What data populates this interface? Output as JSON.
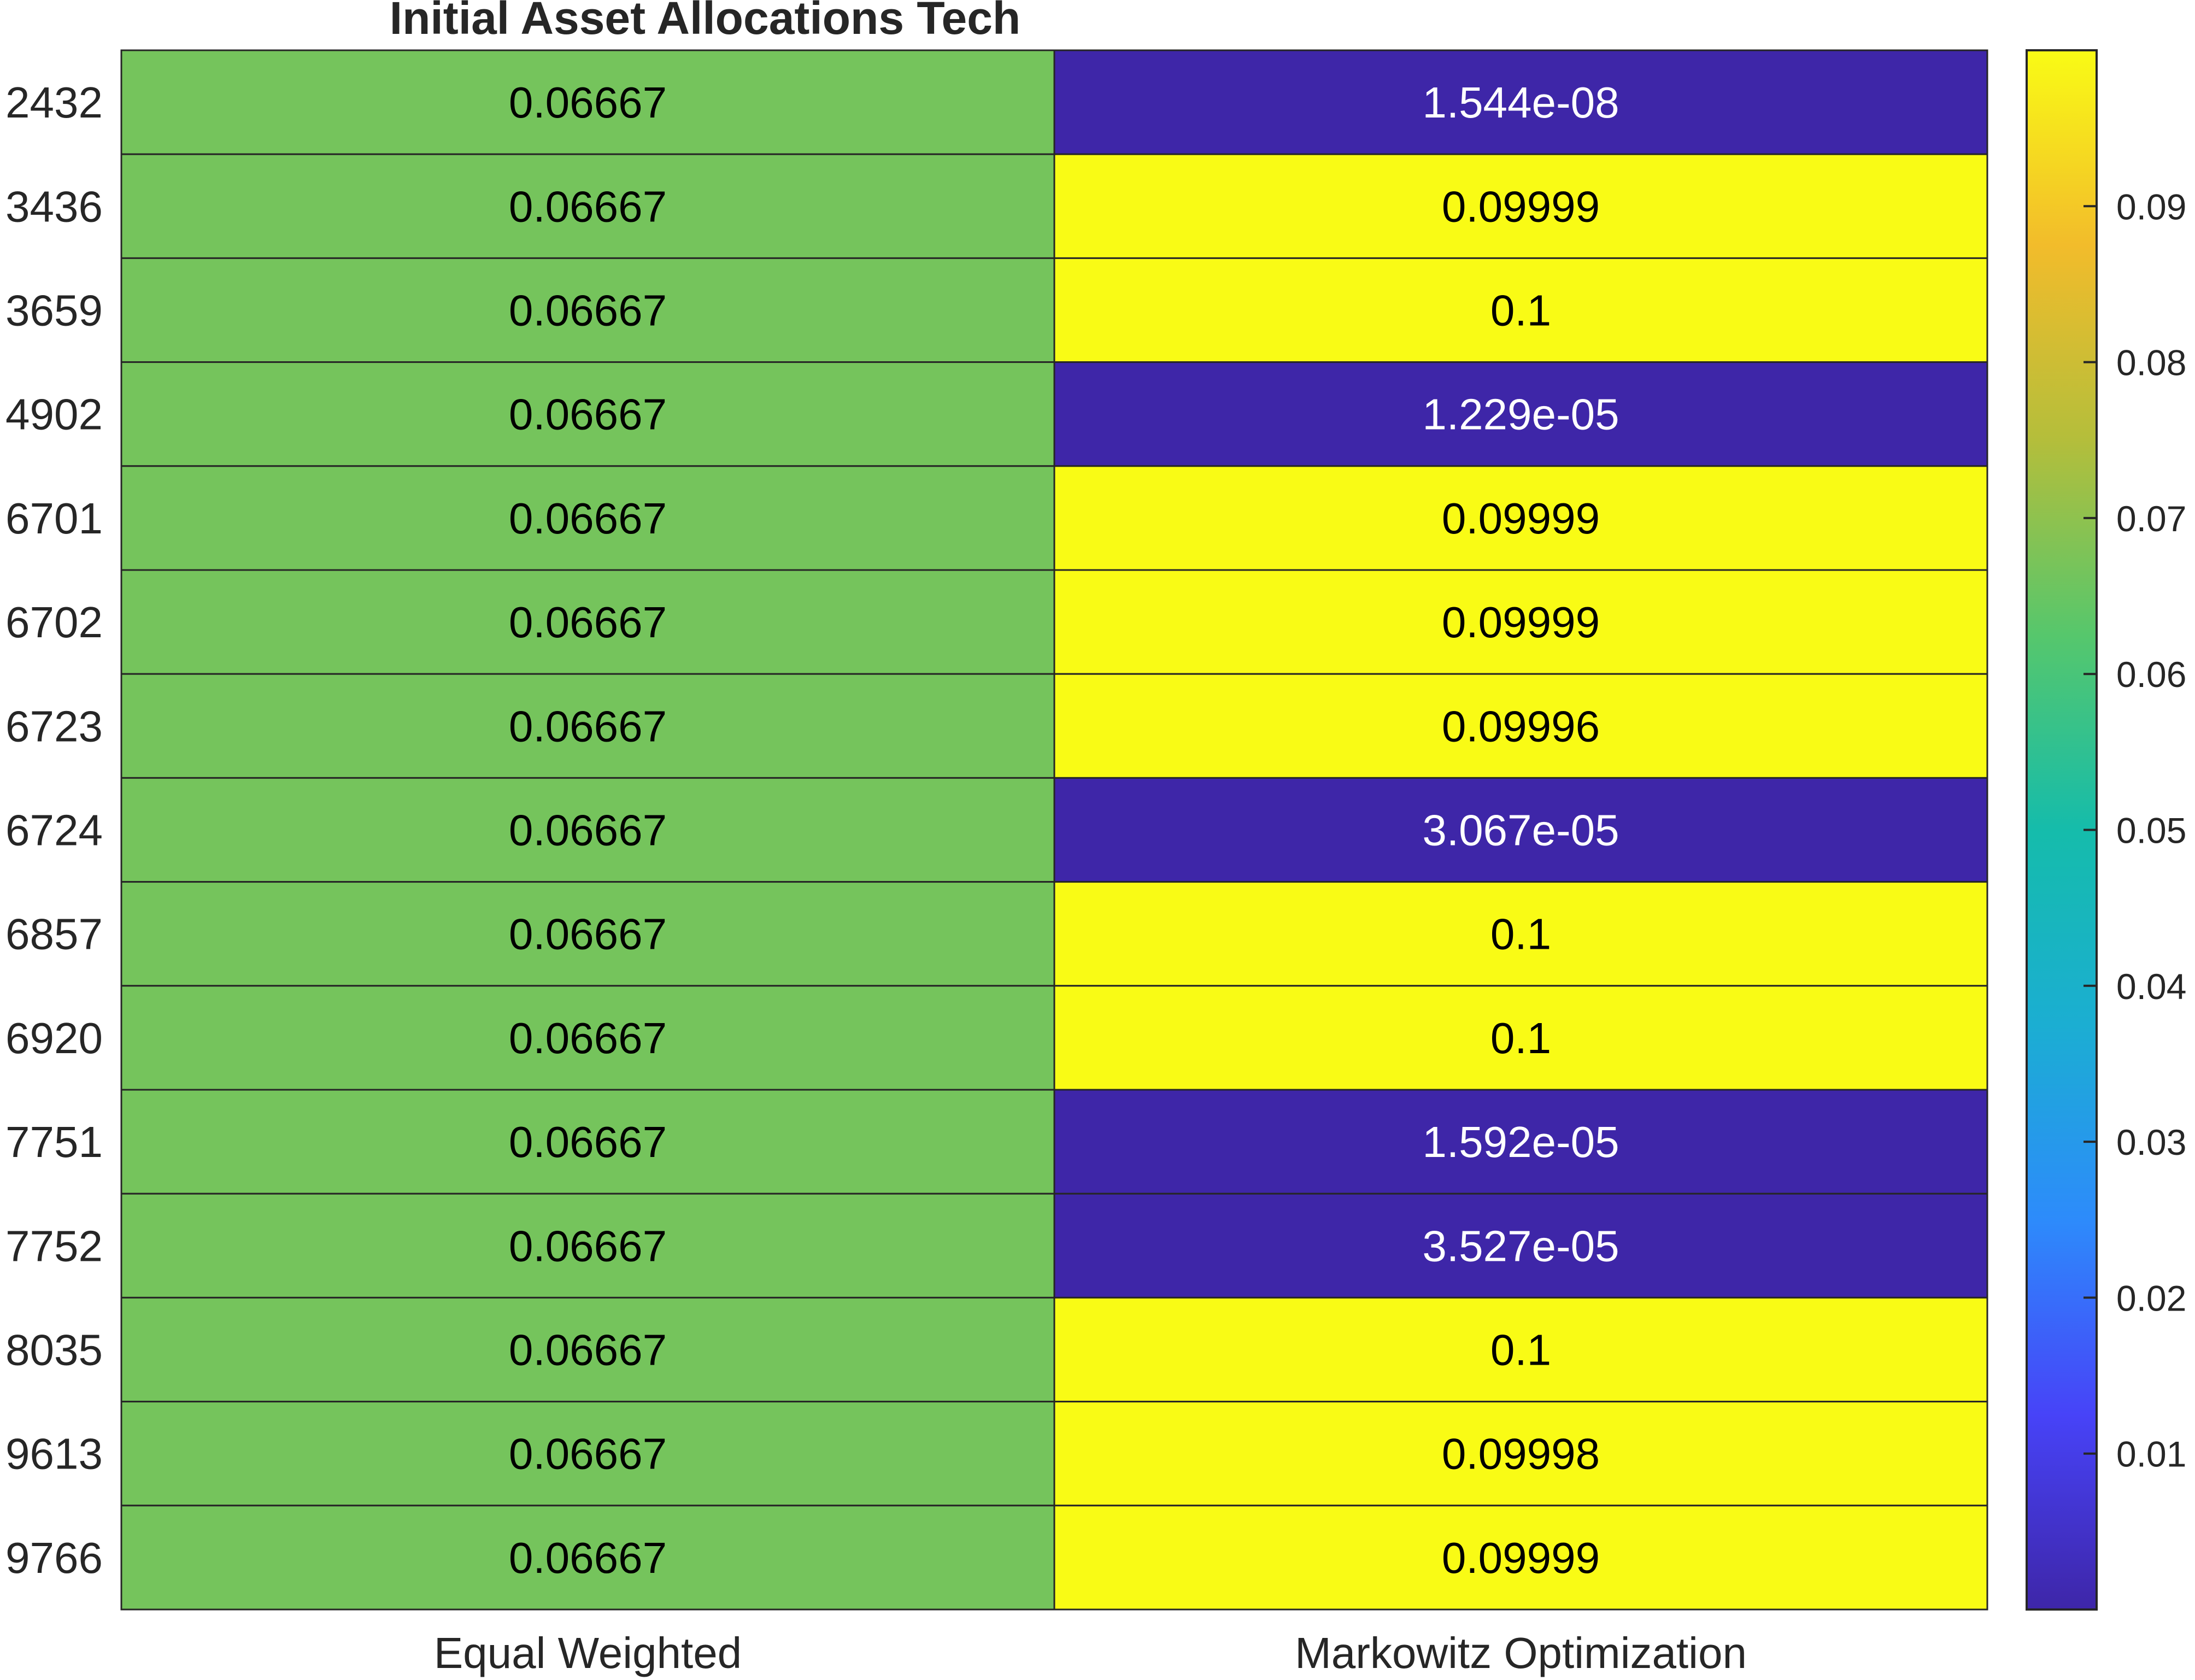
{
  "chart_data": {
    "type": "heatmap",
    "title": "Initial Asset Allocations Tech",
    "rows": [
      "2432",
      "3436",
      "3659",
      "4902",
      "6701",
      "6702",
      "6723",
      "6724",
      "6857",
      "6920",
      "7751",
      "7752",
      "8035",
      "9613",
      "9766"
    ],
    "columns": [
      "Equal Weighted",
      "Markowitz Optimization"
    ],
    "values": [
      [
        0.06667,
        1.544e-08
      ],
      [
        0.06667,
        0.09999
      ],
      [
        0.06667,
        0.1
      ],
      [
        0.06667,
        1.229e-05
      ],
      [
        0.06667,
        0.09999
      ],
      [
        0.06667,
        0.09999
      ],
      [
        0.06667,
        0.09996
      ],
      [
        0.06667,
        3.067e-05
      ],
      [
        0.06667,
        0.1
      ],
      [
        0.06667,
        0.1
      ],
      [
        0.06667,
        1.592e-05
      ],
      [
        0.06667,
        3.527e-05
      ],
      [
        0.06667,
        0.1
      ],
      [
        0.06667,
        0.09998
      ],
      [
        0.06667,
        0.09999
      ]
    ],
    "cell_labels": [
      [
        "0.06667",
        "1.544e-08"
      ],
      [
        "0.06667",
        "0.09999"
      ],
      [
        "0.06667",
        "0.1"
      ],
      [
        "0.06667",
        "1.229e-05"
      ],
      [
        "0.06667",
        "0.09999"
      ],
      [
        "0.06667",
        "0.09999"
      ],
      [
        "0.06667",
        "0.09996"
      ],
      [
        "0.06667",
        "3.067e-05"
      ],
      [
        "0.06667",
        "0.1"
      ],
      [
        "0.06667",
        "0.1"
      ],
      [
        "0.06667",
        "1.592e-05"
      ],
      [
        "0.06667",
        "3.527e-05"
      ],
      [
        "0.06667",
        "0.1"
      ],
      [
        "0.06667",
        "0.09998"
      ],
      [
        "0.06667",
        "0.09999"
      ]
    ],
    "colorbar": {
      "colormap": "parula",
      "range": [
        0,
        0.1
      ],
      "ticks": [
        0.01,
        0.02,
        0.03,
        0.04,
        0.05,
        0.06,
        0.07,
        0.08,
        0.09
      ],
      "tick_labels": [
        "0.01",
        "0.02",
        "0.03",
        "0.04",
        "0.05",
        "0.06",
        "0.07",
        "0.08",
        "0.09"
      ],
      "placement": "right"
    },
    "colors": {
      "parula_stops": [
        "#3e26a8",
        "#4743f8",
        "#2d8bfb",
        "#1baed2",
        "#15bcab",
        "#56c76c",
        "#b4be3b",
        "#f2bc2b",
        "#f9fb15"
      ],
      "dark_text": "#000000",
      "light_text": "#ffffff",
      "grid": "#262626",
      "axes_text": "#262626"
    }
  }
}
